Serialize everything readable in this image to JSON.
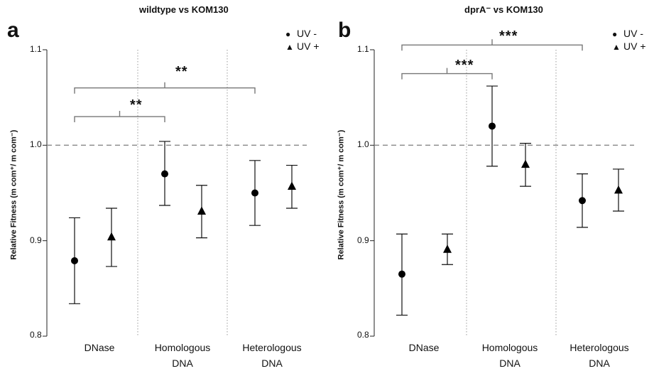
{
  "chart_data": [
    {
      "panel_letter": "a",
      "type": "scatter",
      "title": "wildtype  vs  KOM130",
      "ylabel": "Relative Fitness (m com⁺/ m com⁻)",
      "ylim": [
        0.8,
        1.1
      ],
      "yticks": [
        "0.8",
        "0.9",
        "1.0",
        "1.1"
      ],
      "reference_line": 1.0,
      "categories": [
        {
          "line1": "DNase",
          "line2": ""
        },
        {
          "line1": "Homologous",
          "line2": "DNA"
        },
        {
          "line1": "Heterologous",
          "line2": "DNA"
        }
      ],
      "legend": {
        "placement": "top-right",
        "entries": [
          "UV -",
          "UV +"
        ]
      },
      "series": [
        {
          "name": "UV -",
          "marker": "circle",
          "values": [
            0.879,
            0.97,
            0.95
          ],
          "lower": [
            0.834,
            0.937,
            0.916
          ],
          "upper": [
            0.924,
            1.004,
            0.984
          ]
        },
        {
          "name": "UV +",
          "marker": "triangle",
          "values": [
            0.904,
            0.931,
            0.957
          ],
          "lower": [
            0.873,
            0.903,
            0.934
          ],
          "upper": [
            0.934,
            0.958,
            0.979
          ]
        }
      ],
      "significance": [
        {
          "label": "**",
          "from": [
            0,
            0
          ],
          "to": [
            1,
            0
          ],
          "y": 1.03
        },
        {
          "label": "**",
          "from": [
            0,
            0
          ],
          "to": [
            2,
            0
          ],
          "y": 1.06
        }
      ]
    },
    {
      "panel_letter": "b",
      "type": "scatter",
      "title": "dprA⁻  vs  KOM130",
      "ylabel": "Relative Fitness (m com⁺/ m com⁻)",
      "ylim": [
        0.8,
        1.1
      ],
      "yticks": [
        "0.8",
        "0.9",
        "1.0",
        "1.1"
      ],
      "reference_line": 1.0,
      "categories": [
        {
          "line1": "DNase",
          "line2": ""
        },
        {
          "line1": "Homologous",
          "line2": "DNA"
        },
        {
          "line1": "Heterologous",
          "line2": "DNA"
        }
      ],
      "legend": {
        "placement": "top-right",
        "entries": [
          "UV -",
          "UV +"
        ]
      },
      "series": [
        {
          "name": "UV -",
          "marker": "circle",
          "values": [
            0.865,
            1.02,
            0.942
          ],
          "lower": [
            0.822,
            0.978,
            0.914
          ],
          "upper": [
            0.907,
            1.062,
            0.97
          ]
        },
        {
          "name": "UV +",
          "marker": "triangle",
          "values": [
            0.891,
            0.98,
            0.953
          ],
          "lower": [
            0.875,
            0.957,
            0.931
          ],
          "upper": [
            0.907,
            1.002,
            0.975
          ]
        }
      ],
      "significance": [
        {
          "label": "***",
          "from": [
            0,
            0
          ],
          "to": [
            1,
            0
          ],
          "y": 1.075
        },
        {
          "label": "***",
          "from": [
            0,
            0
          ],
          "to": [
            2,
            0
          ],
          "y": 1.105
        }
      ]
    }
  ]
}
